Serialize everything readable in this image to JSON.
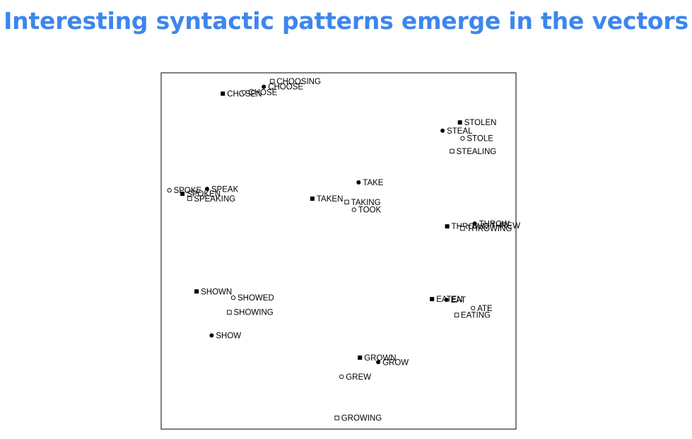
{
  "slide": {
    "title": "Interesting syntactic patterns emerge in the vectors",
    "title_color": "#3d86ee"
  },
  "chart_data": {
    "type": "scatter",
    "title": "",
    "xlabel": "",
    "ylabel": "",
    "axes_visible": false,
    "grid": false,
    "legend": "none",
    "xlim": [
      0,
      100
    ],
    "ylim": [
      0,
      100
    ],
    "marker_styles": {
      "filled-square": "filled square",
      "filled-circle": "filled circle",
      "open-circle": "open circle",
      "open-square": "open square"
    },
    "series": [
      {
        "marker": "filled-square",
        "points": [
          {
            "label": "CHOSEN",
            "x": 17.5,
            "y": 95.2
          },
          {
            "label": "STOLEN",
            "x": 89.8,
            "y": 86.9
          },
          {
            "label": "SPOKEN",
            "x": 5.2,
            "y": 66.3
          },
          {
            "label": "TAKEN",
            "x": 44.8,
            "y": 64.9
          },
          {
            "label": "THROWN",
            "x": 85.9,
            "y": 56.9
          },
          {
            "label": "SHOWN",
            "x": 9.5,
            "y": 38.1
          },
          {
            "label": "EATEN",
            "x": 81.3,
            "y": 35.9
          },
          {
            "label": "GROWN",
            "x": 59.3,
            "y": 19.0
          }
        ]
      },
      {
        "marker": "filled-circle",
        "points": [
          {
            "label": "CHOOSE",
            "x": 30.0,
            "y": 97.2
          },
          {
            "label": "STEAL",
            "x": 84.5,
            "y": 84.5
          },
          {
            "label": "SPEAK",
            "x": 12.7,
            "y": 67.7
          },
          {
            "label": "TAKE",
            "x": 58.9,
            "y": 69.6
          },
          {
            "label": "THROW",
            "x": 94.3,
            "y": 57.7
          },
          {
            "label": "EAT",
            "x": 85.7,
            "y": 35.7
          },
          {
            "label": "SHOW",
            "x": 14.1,
            "y": 25.4
          },
          {
            "label": "GROW",
            "x": 64.9,
            "y": 17.7
          }
        ]
      },
      {
        "marker": "open-circle",
        "points": [
          {
            "label": "CHOSE",
            "x": 24.0,
            "y": 95.6
          },
          {
            "label": "STOLE",
            "x": 90.6,
            "y": 82.3
          },
          {
            "label": "SPOKE",
            "x": 1.2,
            "y": 67.3
          },
          {
            "label": "TOOK",
            "x": 57.5,
            "y": 61.7
          },
          {
            "label": "THREW",
            "x": 97.8,
            "y": 57.1
          },
          {
            "label": "SHOWED",
            "x": 20.7,
            "y": 36.3
          },
          {
            "label": "ATE",
            "x": 93.8,
            "y": 33.3
          },
          {
            "label": "GREW",
            "x": 53.7,
            "y": 13.5
          }
        ]
      },
      {
        "marker": "open-square",
        "points": [
          {
            "label": "CHOOSING",
            "x": 32.6,
            "y": 98.8
          },
          {
            "label": "STEALING",
            "x": 87.4,
            "y": 78.6
          },
          {
            "label": "SPEAKING",
            "x": 7.4,
            "y": 64.9
          },
          {
            "label": "TAKING",
            "x": 55.3,
            "y": 63.9
          },
          {
            "label": "THROWING",
            "x": 90.6,
            "y": 56.3
          },
          {
            "label": "SHOWING",
            "x": 19.5,
            "y": 32.1
          },
          {
            "label": "EATING",
            "x": 88.8,
            "y": 31.3
          },
          {
            "label": "GROWING",
            "x": 52.3,
            "y": 1.6
          }
        ]
      }
    ]
  }
}
